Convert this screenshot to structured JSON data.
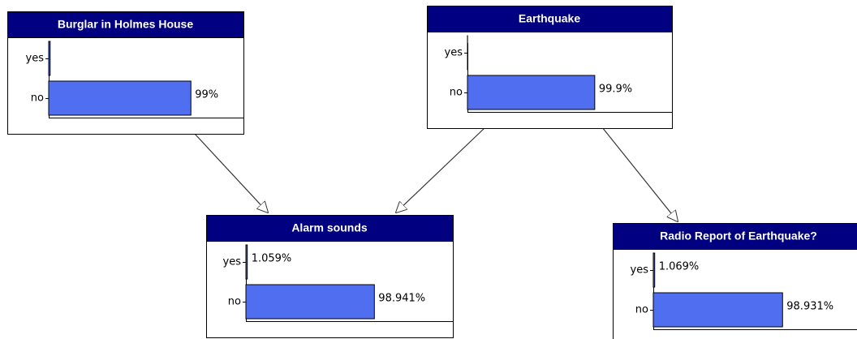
{
  "nodes": [
    {
      "title": "Burglar in Holmes House",
      "states": [
        "yes",
        "no"
      ],
      "values": [
        1,
        99
      ],
      "value_labels": [
        null,
        "99%"
      ]
    },
    {
      "title": "Earthquake",
      "states": [
        "yes",
        "no"
      ],
      "values": [
        0.1,
        99.9
      ],
      "value_labels": [
        null,
        "99.9%"
      ]
    },
    {
      "title": "Alarm sounds",
      "states": [
        "yes",
        "no"
      ],
      "values": [
        1.059,
        98.941
      ],
      "value_labels": [
        "1.059%",
        "98.941%"
      ]
    },
    {
      "title": "Radio Report of Earthquake?",
      "states": [
        "yes",
        "no"
      ],
      "values": [
        1.069,
        98.931
      ],
      "value_labels": [
        "1.069%",
        "98.931%"
      ]
    }
  ]
}
